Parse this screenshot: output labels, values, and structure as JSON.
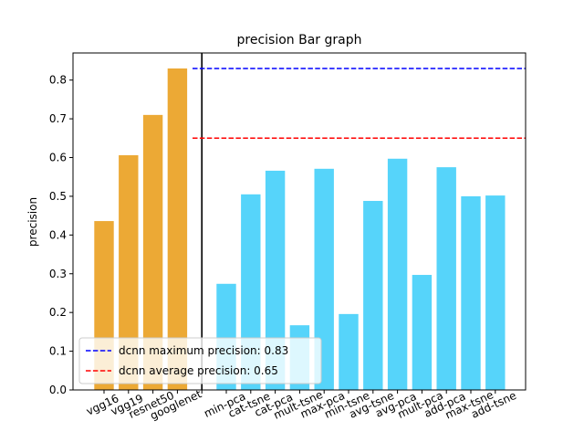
{
  "chart_data": {
    "type": "bar",
    "title": "precision Bar graph",
    "y_label": "precision",
    "categories": [
      "vgg16",
      "vgg19",
      "resnet50",
      "googlenet",
      null,
      "min-pca",
      "cat-tsne",
      "cat-pca",
      "mult-tsne",
      "max-pca",
      "min-tsne",
      "avg-tsne",
      "avg-pca",
      "mult-pca",
      "add-pca",
      "max-tsne",
      "add-tsne"
    ],
    "values": [
      0.436,
      0.606,
      0.71,
      0.83,
      null,
      0.274,
      0.505,
      0.566,
      0.167,
      0.571,
      0.196,
      0.488,
      0.597,
      0.297,
      0.575,
      0.5,
      0.502
    ],
    "colors": [
      "#eca935",
      "#eca935",
      "#eca935",
      "#eca935",
      null,
      "#56d4fa",
      "#56d4fa",
      "#56d4fa",
      "#56d4fa",
      "#56d4fa",
      "#56d4fa",
      "#56d4fa",
      "#56d4fa",
      "#56d4fa",
      "#56d4fa",
      "#56d4fa",
      "#56d4fa"
    ],
    "ylim": [
      0,
      0.87
    ],
    "yticks": [
      {
        "value": 0,
        "label": "0.0"
      },
      0.1,
      0.2,
      0.3,
      0.4,
      0.5,
      0.6,
      0.7,
      0.8
    ],
    "hlines": [
      {
        "name": "dcnn maximum precision: 0.83",
        "value": 0.83,
        "color": "#0000ff"
      },
      {
        "name": "dcnn average precision: 0.65",
        "value": 0.65,
        "color": "#ff0000"
      }
    ],
    "legend": "lower left"
  }
}
